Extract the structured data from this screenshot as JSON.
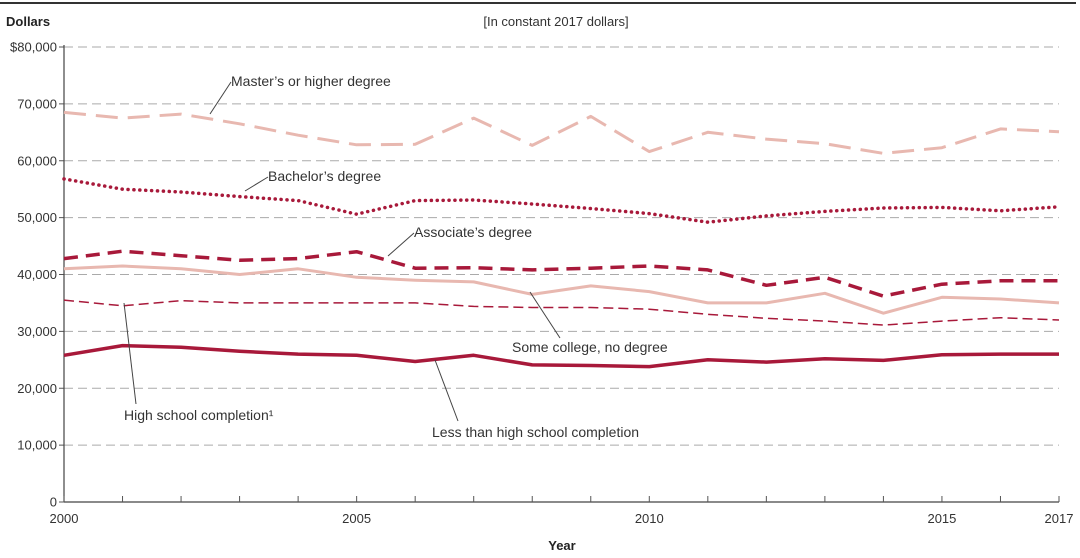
{
  "chart_data": {
    "type": "line",
    "subtitle": "[In constant 2017 dollars]",
    "ylabel": "Dollars",
    "xlabel": "Year",
    "xlim": [
      2000,
      2017
    ],
    "ylim": [
      0,
      80000
    ],
    "x_ticks": [
      2000,
      2005,
      2010,
      2015,
      2017
    ],
    "x_tick_labels": [
      "2000",
      "2005",
      "2010",
      "2015",
      "2017"
    ],
    "y_ticks": [
      0,
      10000,
      20000,
      30000,
      40000,
      50000,
      60000,
      70000,
      80000
    ],
    "y_tick_labels": [
      "0",
      "10,000",
      "20,000",
      "30,000",
      "40,000",
      "50,000",
      "60,000",
      "70,000",
      "$80,000"
    ],
    "grid": true,
    "x": [
      2000,
      2001,
      2002,
      2003,
      2004,
      2005,
      2006,
      2007,
      2008,
      2009,
      2010,
      2011,
      2012,
      2013,
      2014,
      2015,
      2016,
      2017
    ],
    "series": [
      {
        "name": "Master’s or higher degree",
        "color": "#e8b8b0",
        "dash": "long-dash",
        "values": [
          68500,
          67500,
          68200,
          66500,
          64500,
          62800,
          62900,
          67500,
          62700,
          67800,
          61600,
          65000,
          63800,
          63000,
          61300,
          62300,
          65600,
          65100
        ]
      },
      {
        "name": "Bachelor’s degree",
        "color": "#a8193a",
        "dash": "dotted",
        "values": [
          56800,
          55000,
          54500,
          53700,
          53000,
          50600,
          53000,
          53100,
          52400,
          51600,
          50700,
          49200,
          50300,
          51100,
          51700,
          51800,
          51200,
          51900
        ]
      },
      {
        "name": "Associate’s degree",
        "color": "#a8193a",
        "dash": "dashed",
        "values": [
          42800,
          44100,
          43300,
          42500,
          42800,
          44000,
          41100,
          41200,
          40800,
          41100,
          41500,
          40800,
          38100,
          39500,
          36200,
          38300,
          38900,
          38900
        ]
      },
      {
        "name": "Some college, no degree",
        "color": "#e8b8b0",
        "dash": "solid",
        "values": [
          41000,
          41500,
          41000,
          40000,
          41000,
          39500,
          39000,
          38700,
          36500,
          38000,
          37000,
          35000,
          35000,
          36700,
          33200,
          36000,
          35700,
          35000
        ]
      },
      {
        "name": "High school completion¹",
        "color": "#a8193a",
        "dash": "thin-dash",
        "values": [
          35500,
          34500,
          35400,
          35000,
          35000,
          35000,
          35000,
          34400,
          34200,
          34200,
          33900,
          33000,
          32300,
          31800,
          31100,
          31800,
          32400,
          32000
        ]
      },
      {
        "name": "Less than high school completion",
        "color": "#a8193a",
        "dash": "solid-thick",
        "values": [
          25800,
          27500,
          27200,
          26500,
          26000,
          25800,
          24700,
          25800,
          24100,
          24000,
          23800,
          25000,
          24600,
          25200,
          24900,
          25900,
          26000,
          26000
        ]
      }
    ],
    "annotations": [
      "Master’s or higher degree",
      "Bachelor’s degree",
      "Associate’s degree",
      "Some college, no degree",
      "High school completion¹",
      "Less than high school completion"
    ]
  }
}
